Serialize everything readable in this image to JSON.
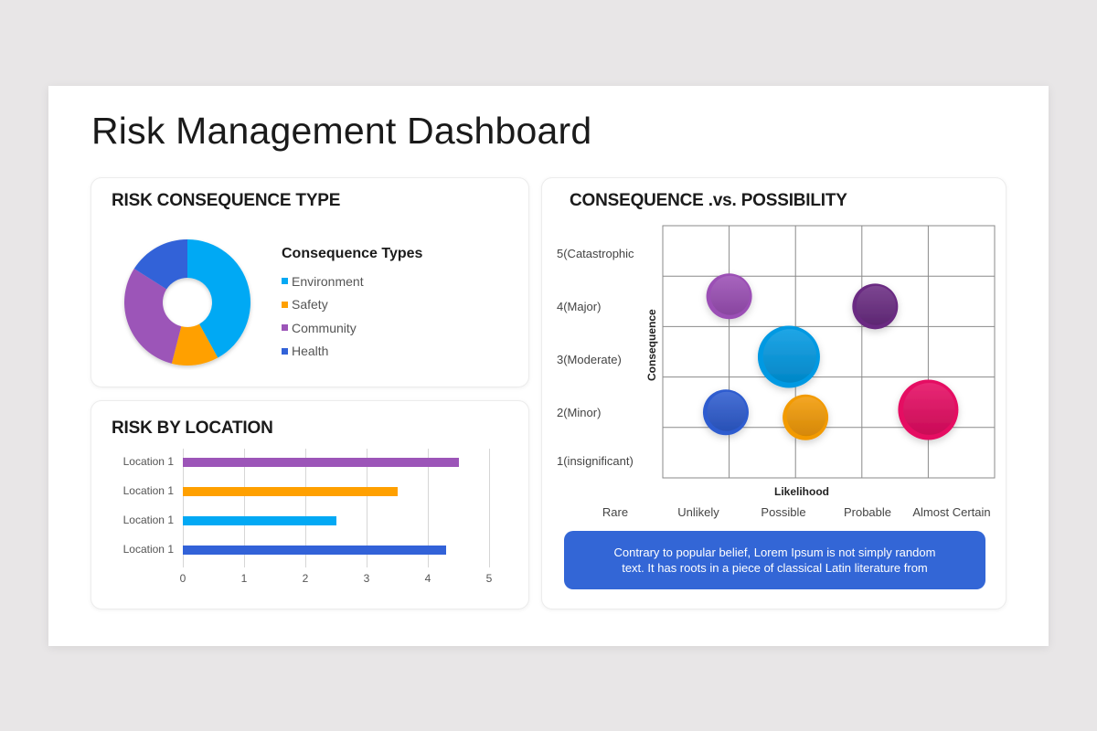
{
  "page": {
    "title": "Risk Management Dashboard"
  },
  "panels": {
    "consequence_type": {
      "title": "RISK CONSEQUENCE TYPE",
      "legend_title": "Consequence Types",
      "legend": [
        {
          "label": "Environment",
          "color": "#03a9f4"
        },
        {
          "label": "Safety",
          "color": "#ffa000"
        },
        {
          "label": "Community",
          "color": "#9c55b8"
        },
        {
          "label": "Health",
          "color": "#3262d8"
        }
      ]
    },
    "location": {
      "title": "RISK BY LOCATION",
      "rows": [
        {
          "label": "Location 1",
          "value": 4.5,
          "color": "#9c55b8"
        },
        {
          "label": "Location 1",
          "value": 3.5,
          "color": "#ffa000"
        },
        {
          "label": "Location 1",
          "value": 2.5,
          "color": "#03a9f4"
        },
        {
          "label": "Location 1",
          "value": 4.3,
          "color": "#3262d8"
        }
      ],
      "ticks": [
        "0",
        "1",
        "2",
        "3",
        "4",
        "5"
      ]
    },
    "matrix": {
      "title": "CONSEQUENCE .vs. POSSIBILITY",
      "y_labels": [
        "5(Catastrophic",
        "4(Major)",
        "3(Moderate)",
        "2(Minor)",
        "1(insignificant)"
      ],
      "y_title": "Consequence",
      "x_title": "Likelihood",
      "x_labels": [
        "Rare",
        "Unlikely",
        "Possible",
        "Probable",
        "Almost Certain"
      ],
      "note_lines": [
        "Contrary to popular belief, Lorem Ipsum is not simply random",
        "text. It has roots in a piece of classical Latin literature from"
      ]
    }
  },
  "chart_data": [
    {
      "type": "pie",
      "title": "RISK CONSEQUENCE TYPE",
      "donut": true,
      "categories": [
        "Environment",
        "Safety",
        "Community",
        "Health"
      ],
      "values": [
        42,
        12,
        30,
        16
      ],
      "colors": [
        "#03a9f4",
        "#ffa000",
        "#9c55b8",
        "#3262d8"
      ],
      "legend_title": "Consequence Types",
      "legend_position": "right"
    },
    {
      "type": "bar",
      "orientation": "horizontal",
      "title": "RISK BY LOCATION",
      "categories": [
        "Location 1",
        "Location 1",
        "Location 1",
        "Location 1"
      ],
      "values": [
        4.5,
        3.5,
        2.5,
        4.3
      ],
      "colors": [
        "#9c55b8",
        "#ffa000",
        "#03a9f4",
        "#3262d8"
      ],
      "xlim": [
        0,
        5
      ],
      "xticks": [
        0,
        1,
        2,
        3,
        4,
        5
      ],
      "grid": true
    },
    {
      "type": "scatter",
      "subtype": "bubble",
      "title": "CONSEQUENCE .vs. POSSIBILITY",
      "xlabel": "Likelihood",
      "ylabel": "Consequence",
      "x_categories": [
        "Rare",
        "Unlikely",
        "Possible",
        "Probable",
        "Almost Certain"
      ],
      "y_categories": [
        "1(insignificant)",
        "2(Minor)",
        "3(Moderate)",
        "4(Major)",
        "5(Catastrophic"
      ],
      "grid": true,
      "points": [
        {
          "x": 1.0,
          "y": 3.6,
          "size": 25,
          "color": "#9b4fb5"
        },
        {
          "x": 3.2,
          "y": 3.4,
          "size": 25,
          "color": "#6a2c82"
        },
        {
          "x": 1.9,
          "y": 2.4,
          "size": 34,
          "color": "#0299e2"
        },
        {
          "x": 0.95,
          "y": 1.3,
          "size": 25,
          "color": "#2e5ccf"
        },
        {
          "x": 2.15,
          "y": 1.2,
          "size": 25,
          "color": "#f29a06"
        },
        {
          "x": 4.0,
          "y": 1.35,
          "size": 33,
          "color": "#e50c62"
        }
      ]
    }
  ]
}
